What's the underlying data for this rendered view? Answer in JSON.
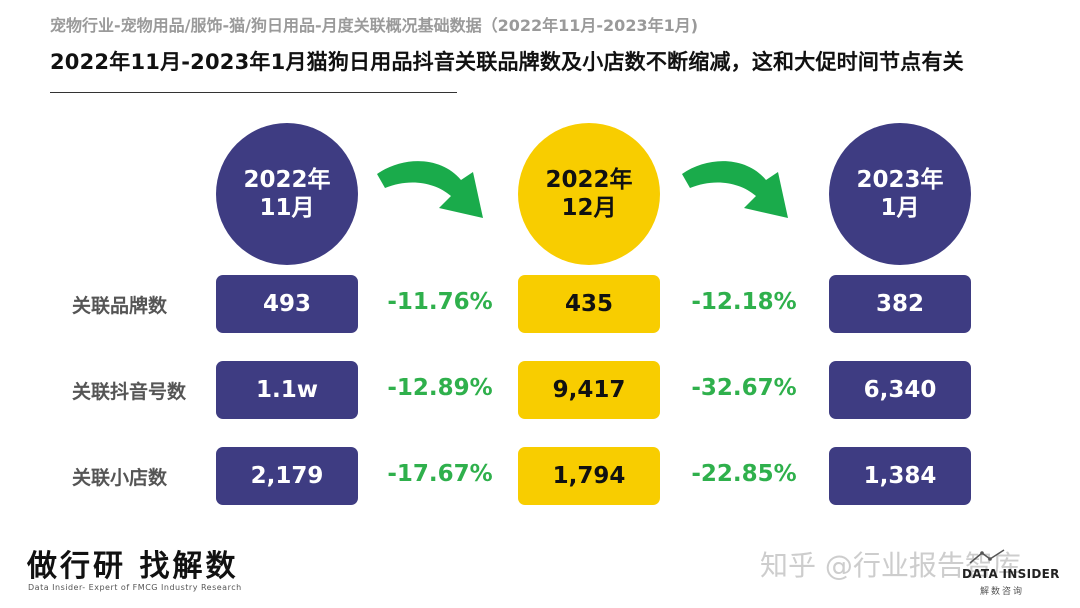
{
  "header": {
    "subtitle": "宠物行业-宠物用品/服饰-猫/狗日用品-月度关联概况基础数据（2022年11月-2023年1月)",
    "headline": "2022年11月-2023年1月猫狗日用品抖音关联品牌数及小店数不断缩减，这和大促时间节点有关"
  },
  "periods": [
    {
      "year": "2022年",
      "month": "11月",
      "color": "#3e3c82"
    },
    {
      "year": "2022年",
      "month": "12月",
      "color": "#f8cd00"
    },
    {
      "year": "2023年",
      "month": "1月",
      "color": "#3e3c82"
    }
  ],
  "rows": [
    {
      "label": "关联品牌数",
      "values": [
        "493",
        "435",
        "382"
      ],
      "changes": [
        "-11.76%",
        "-12.18%"
      ]
    },
    {
      "label": "关联抖音号数",
      "values": [
        "1.1w",
        "9,417",
        "6,340"
      ],
      "changes": [
        "-12.89%",
        "-32.67%"
      ]
    },
    {
      "label": "关联小店数",
      "values": [
        "2,179",
        "1,794",
        "1,384"
      ],
      "changes": [
        "-17.67%",
        "-22.85%"
      ]
    }
  ],
  "colors": {
    "navy": "#3e3c82",
    "gold": "#f8cd00",
    "green": "#2fb04c",
    "arrow": "#1aab4b"
  },
  "footer": {
    "brand": "做行研 找解数",
    "brand_sub": "Data Insider- Expert of FMCG Industry Research",
    "watermark": "知乎 @行业报告智库",
    "logo_name": "DATA INSIDER",
    "logo_sub": "解数咨询"
  }
}
